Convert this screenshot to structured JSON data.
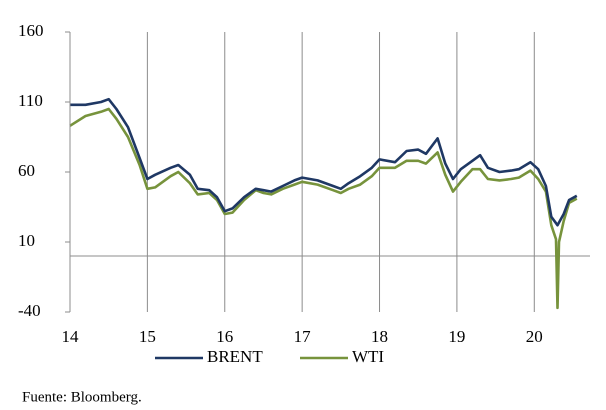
{
  "chart_data": {
    "type": "line",
    "source": "Fuente: Bloomberg.",
    "xlim": [
      14,
      20.72
    ],
    "xticks": [
      14,
      15,
      16,
      17,
      18,
      19,
      20
    ],
    "ylim": [
      -40,
      160
    ],
    "yticks": [
      -40,
      10,
      60,
      110,
      160
    ],
    "grid": true,
    "legend": "bottom",
    "series": [
      {
        "name": "BRENT",
        "color": "#1f3864",
        "x": [
          14.0,
          14.2,
          14.4,
          14.5,
          14.6,
          14.75,
          14.9,
          15.0,
          15.1,
          15.3,
          15.4,
          15.55,
          15.65,
          15.8,
          15.9,
          16.0,
          16.1,
          16.25,
          16.4,
          16.5,
          16.6,
          16.75,
          16.9,
          17.0,
          17.2,
          17.4,
          17.5,
          17.6,
          17.75,
          17.9,
          18.0,
          18.2,
          18.35,
          18.5,
          18.6,
          18.75,
          18.85,
          18.95,
          19.05,
          19.2,
          19.3,
          19.4,
          19.55,
          19.7,
          19.8,
          19.95,
          20.05,
          20.15,
          20.22,
          20.3,
          20.38,
          20.45,
          20.55
        ],
        "values": [
          108,
          108,
          110,
          112,
          105,
          92,
          70,
          55,
          58,
          63,
          65,
          58,
          48,
          47,
          42,
          32,
          34,
          42,
          48,
          47,
          46,
          50,
          54,
          56,
          54,
          50,
          48,
          52,
          57,
          63,
          69,
          67,
          75,
          76,
          73,
          84,
          66,
          55,
          62,
          68,
          72,
          63,
          60,
          61,
          62,
          67,
          62,
          50,
          28,
          22,
          30,
          40,
          43
        ]
      },
      {
        "name": "WTI",
        "color": "#77933c",
        "x": [
          14.0,
          14.2,
          14.4,
          14.5,
          14.6,
          14.75,
          14.9,
          15.0,
          15.1,
          15.3,
          15.4,
          15.55,
          15.65,
          15.8,
          15.9,
          16.0,
          16.1,
          16.25,
          16.4,
          16.5,
          16.6,
          16.75,
          16.9,
          17.0,
          17.2,
          17.4,
          17.5,
          17.6,
          17.75,
          17.9,
          18.0,
          18.2,
          18.35,
          18.5,
          18.6,
          18.75,
          18.85,
          18.95,
          19.05,
          19.2,
          19.3,
          19.4,
          19.55,
          19.7,
          19.8,
          19.95,
          20.05,
          20.15,
          20.22,
          20.28,
          20.3,
          20.32,
          20.38,
          20.45,
          20.55
        ],
        "values": [
          93,
          100,
          103,
          105,
          98,
          85,
          65,
          48,
          49,
          57,
          60,
          52,
          44,
          45,
          40,
          30,
          31,
          40,
          47,
          45,
          44,
          48,
          51,
          53,
          51,
          47,
          45,
          48,
          51,
          57,
          63,
          63,
          68,
          68,
          66,
          74,
          58,
          46,
          53,
          62,
          62,
          55,
          54,
          55,
          56,
          61,
          55,
          46,
          22,
          12,
          -37,
          10,
          25,
          38,
          41
        ]
      }
    ]
  }
}
